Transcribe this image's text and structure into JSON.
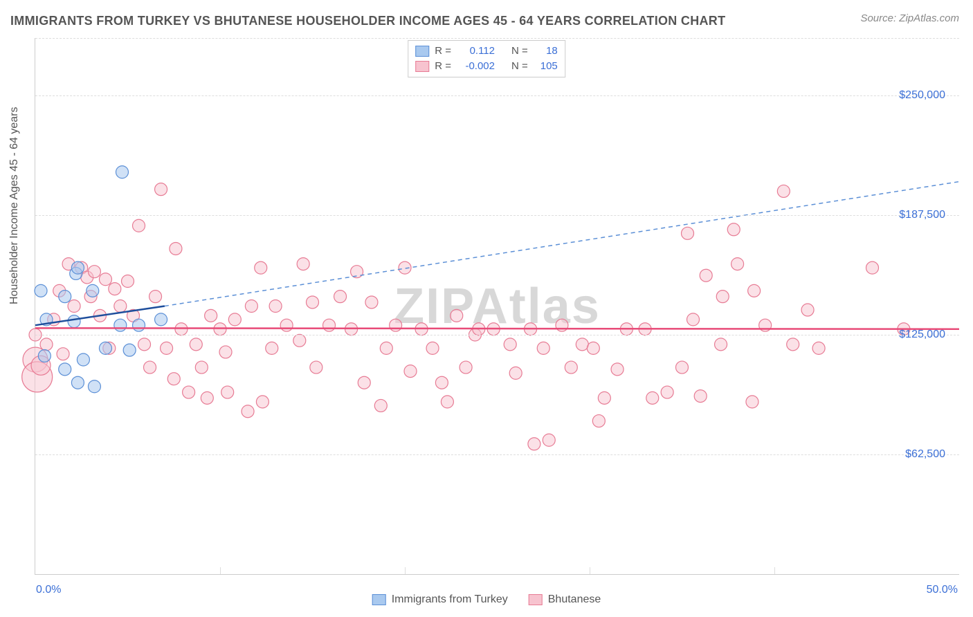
{
  "title": "IMMIGRANTS FROM TURKEY VS BHUTANESE HOUSEHOLDER INCOME AGES 45 - 64 YEARS CORRELATION CHART",
  "source": "Source: ZipAtlas.com",
  "watermark": "ZIPAtlas",
  "y_axis_title": "Householder Income Ages 45 - 64 years",
  "chart": {
    "type": "scatter",
    "background_color": "#ffffff",
    "x_range": [
      0,
      50
    ],
    "y_range": [
      0,
      280000
    ],
    "x_ticks_minor": [
      10,
      20,
      30,
      40
    ],
    "x_tick_labels": {
      "0": "0.0%",
      "50": "50.0%"
    },
    "y_grid": [
      62500,
      125000,
      187500,
      250000,
      280000
    ],
    "y_tick_labels": {
      "62500": "$62,500",
      "125000": "$125,000",
      "187500": "$187,500",
      "250000": "$250,000"
    },
    "grid_color": "#dddddd",
    "axis_color": "#cccccc",
    "tick_label_color": "#3b6fd6",
    "axis_title_color": "#555555",
    "title_color": "#555555",
    "title_fontsize": 18,
    "label_fontsize": 16
  },
  "series": {
    "turkey": {
      "label": "Immigrants from Turkey",
      "fill": "#a9c9ef",
      "stroke": "#5b8fd6",
      "fill_opacity": 0.55,
      "marker_stroke_width": 1.2,
      "default_radius": 9,
      "R": "0.112",
      "N": "18",
      "trend": {
        "solid": {
          "x1": 0,
          "y1": 130000,
          "x2": 7,
          "y2": 140000,
          "color": "#1e4e9c",
          "width": 2.5
        },
        "dashed": {
          "x1": 7,
          "y1": 140000,
          "x2": 50,
          "y2": 205000,
          "color": "#5b8fd6",
          "width": 1.5,
          "dash": "6,5"
        }
      },
      "points": [
        {
          "x": 0.3,
          "y": 148000
        },
        {
          "x": 0.5,
          "y": 114000
        },
        {
          "x": 0.6,
          "y": 133000
        },
        {
          "x": 1.6,
          "y": 107000
        },
        {
          "x": 1.6,
          "y": 145000
        },
        {
          "x": 2.1,
          "y": 132000
        },
        {
          "x": 2.2,
          "y": 157000
        },
        {
          "x": 2.3,
          "y": 160000
        },
        {
          "x": 2.3,
          "y": 100000
        },
        {
          "x": 2.6,
          "y": 112000
        },
        {
          "x": 3.1,
          "y": 148000
        },
        {
          "x": 3.2,
          "y": 98000
        },
        {
          "x": 3.8,
          "y": 118000
        },
        {
          "x": 4.6,
          "y": 130000
        },
        {
          "x": 4.7,
          "y": 210000
        },
        {
          "x": 5.1,
          "y": 117000
        },
        {
          "x": 5.6,
          "y": 130000
        },
        {
          "x": 6.8,
          "y": 133000
        }
      ]
    },
    "bhutanese": {
      "label": "Bhutanese",
      "fill": "#f7c3cf",
      "stroke": "#e77b94",
      "fill_opacity": 0.5,
      "marker_stroke_width": 1.2,
      "default_radius": 9,
      "R": "-0.002",
      "N": "105",
      "trend": {
        "solid": {
          "x1": 0,
          "y1": 128500,
          "x2": 50,
          "y2": 128000,
          "color": "#e84b78",
          "width": 2.5
        }
      },
      "points": [
        {
          "x": 0.0,
          "y": 125000
        },
        {
          "x": 0.0,
          "y": 112000,
          "r": 18
        },
        {
          "x": 0.1,
          "y": 103000,
          "r": 22
        },
        {
          "x": 0.3,
          "y": 109000,
          "r": 14
        },
        {
          "x": 0.6,
          "y": 120000
        },
        {
          "x": 1.0,
          "y": 133000
        },
        {
          "x": 1.3,
          "y": 148000
        },
        {
          "x": 1.5,
          "y": 115000
        },
        {
          "x": 1.8,
          "y": 162000
        },
        {
          "x": 2.1,
          "y": 140000
        },
        {
          "x": 2.5,
          "y": 160000
        },
        {
          "x": 2.8,
          "y": 155000
        },
        {
          "x": 3.0,
          "y": 145000
        },
        {
          "x": 3.2,
          "y": 158000
        },
        {
          "x": 3.5,
          "y": 135000
        },
        {
          "x": 3.8,
          "y": 154000
        },
        {
          "x": 4.0,
          "y": 118000
        },
        {
          "x": 4.3,
          "y": 149000
        },
        {
          "x": 4.6,
          "y": 140000
        },
        {
          "x": 5.0,
          "y": 153000
        },
        {
          "x": 5.3,
          "y": 135000
        },
        {
          "x": 5.6,
          "y": 182000
        },
        {
          "x": 5.9,
          "y": 120000
        },
        {
          "x": 6.2,
          "y": 108000
        },
        {
          "x": 6.5,
          "y": 145000
        },
        {
          "x": 6.8,
          "y": 201000
        },
        {
          "x": 7.1,
          "y": 118000
        },
        {
          "x": 7.5,
          "y": 102000
        },
        {
          "x": 7.6,
          "y": 170000
        },
        {
          "x": 7.9,
          "y": 128000
        },
        {
          "x": 8.3,
          "y": 95000
        },
        {
          "x": 8.7,
          "y": 120000
        },
        {
          "x": 9.0,
          "y": 108000
        },
        {
          "x": 9.3,
          "y": 92000
        },
        {
          "x": 9.5,
          "y": 135000
        },
        {
          "x": 10.0,
          "y": 128000
        },
        {
          "x": 10.3,
          "y": 116000
        },
        {
          "x": 10.4,
          "y": 95000
        },
        {
          "x": 10.8,
          "y": 133000
        },
        {
          "x": 11.5,
          "y": 85000
        },
        {
          "x": 11.7,
          "y": 140000
        },
        {
          "x": 12.2,
          "y": 160000
        },
        {
          "x": 12.3,
          "y": 90000
        },
        {
          "x": 12.8,
          "y": 118000
        },
        {
          "x": 13.0,
          "y": 140000
        },
        {
          "x": 13.6,
          "y": 130000
        },
        {
          "x": 14.3,
          "y": 122000
        },
        {
          "x": 14.5,
          "y": 162000
        },
        {
          "x": 15.0,
          "y": 142000
        },
        {
          "x": 15.2,
          "y": 108000
        },
        {
          "x": 15.9,
          "y": 130000
        },
        {
          "x": 16.5,
          "y": 145000
        },
        {
          "x": 17.1,
          "y": 128000
        },
        {
          "x": 17.4,
          "y": 158000
        },
        {
          "x": 17.8,
          "y": 100000
        },
        {
          "x": 18.2,
          "y": 142000
        },
        {
          "x": 18.7,
          "y": 88000
        },
        {
          "x": 19.0,
          "y": 118000
        },
        {
          "x": 19.5,
          "y": 130000
        },
        {
          "x": 20.0,
          "y": 160000
        },
        {
          "x": 20.3,
          "y": 106000
        },
        {
          "x": 20.9,
          "y": 128000
        },
        {
          "x": 21.5,
          "y": 118000
        },
        {
          "x": 22.0,
          "y": 100000
        },
        {
          "x": 22.3,
          "y": 90000
        },
        {
          "x": 22.8,
          "y": 135000
        },
        {
          "x": 23.3,
          "y": 108000
        },
        {
          "x": 23.8,
          "y": 125000
        },
        {
          "x": 24.0,
          "y": 128000
        },
        {
          "x": 24.8,
          "y": 128000
        },
        {
          "x": 25.7,
          "y": 120000
        },
        {
          "x": 26.0,
          "y": 105000
        },
        {
          "x": 26.8,
          "y": 128000
        },
        {
          "x": 27.0,
          "y": 68000
        },
        {
          "x": 27.5,
          "y": 118000
        },
        {
          "x": 27.8,
          "y": 70000
        },
        {
          "x": 28.5,
          "y": 130000
        },
        {
          "x": 29.0,
          "y": 108000
        },
        {
          "x": 29.6,
          "y": 120000
        },
        {
          "x": 30.2,
          "y": 118000
        },
        {
          "x": 30.5,
          "y": 80000
        },
        {
          "x": 30.8,
          "y": 92000
        },
        {
          "x": 31.5,
          "y": 107000
        },
        {
          "x": 32.0,
          "y": 128000
        },
        {
          "x": 33.0,
          "y": 128000
        },
        {
          "x": 33.4,
          "y": 92000
        },
        {
          "x": 34.2,
          "y": 95000
        },
        {
          "x": 35.0,
          "y": 108000
        },
        {
          "x": 35.3,
          "y": 178000
        },
        {
          "x": 35.6,
          "y": 133000
        },
        {
          "x": 36.0,
          "y": 93000
        },
        {
          "x": 36.3,
          "y": 156000
        },
        {
          "x": 37.1,
          "y": 120000
        },
        {
          "x": 37.2,
          "y": 145000
        },
        {
          "x": 37.8,
          "y": 180000
        },
        {
          "x": 38.0,
          "y": 162000
        },
        {
          "x": 38.8,
          "y": 90000
        },
        {
          "x": 38.9,
          "y": 148000
        },
        {
          "x": 39.5,
          "y": 130000
        },
        {
          "x": 40.5,
          "y": 200000
        },
        {
          "x": 41.0,
          "y": 120000
        },
        {
          "x": 41.8,
          "y": 138000
        },
        {
          "x": 42.4,
          "y": 118000
        },
        {
          "x": 45.3,
          "y": 160000
        },
        {
          "x": 47.0,
          "y": 128000
        }
      ]
    }
  },
  "legend_top": {
    "r_label": "R =",
    "n_label": "N ="
  },
  "legend_bottom": {
    "items": [
      "turkey",
      "bhutanese"
    ]
  }
}
